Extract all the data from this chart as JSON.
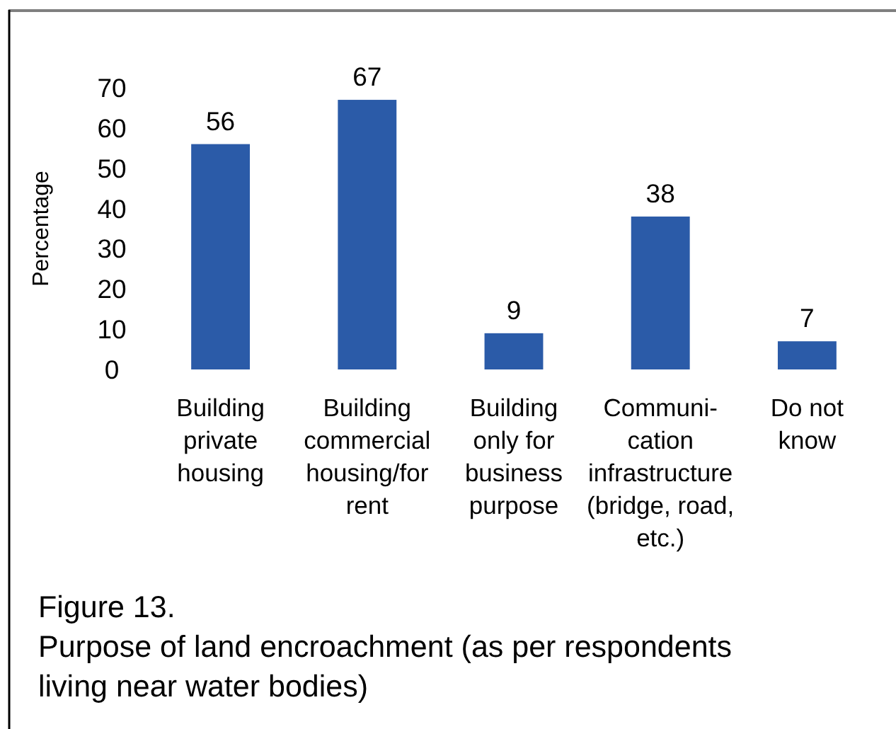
{
  "chart_data": {
    "type": "bar",
    "title": "Figure 13.",
    "subtitle": "Purpose of land encroachment (as per respondents\nliving near water bodies)",
    "ylabel": "Percentage",
    "categories": [
      "Building\nprivate\nhousing",
      "Building\ncommercial\nhousing/for\nrent",
      "Building\nonly for\nbusiness\npurpose",
      "Communi-\ncation\ninfrastructure\n(bridge, road,\netc.)",
      "Do not\nknow"
    ],
    "values": [
      56,
      67,
      9,
      38,
      7
    ],
    "color": "#2b5ba8",
    "ylim": [
      0,
      70
    ],
    "yticks": [
      0,
      10,
      20,
      30,
      40,
      50,
      60,
      70
    ],
    "data_labels": true
  }
}
